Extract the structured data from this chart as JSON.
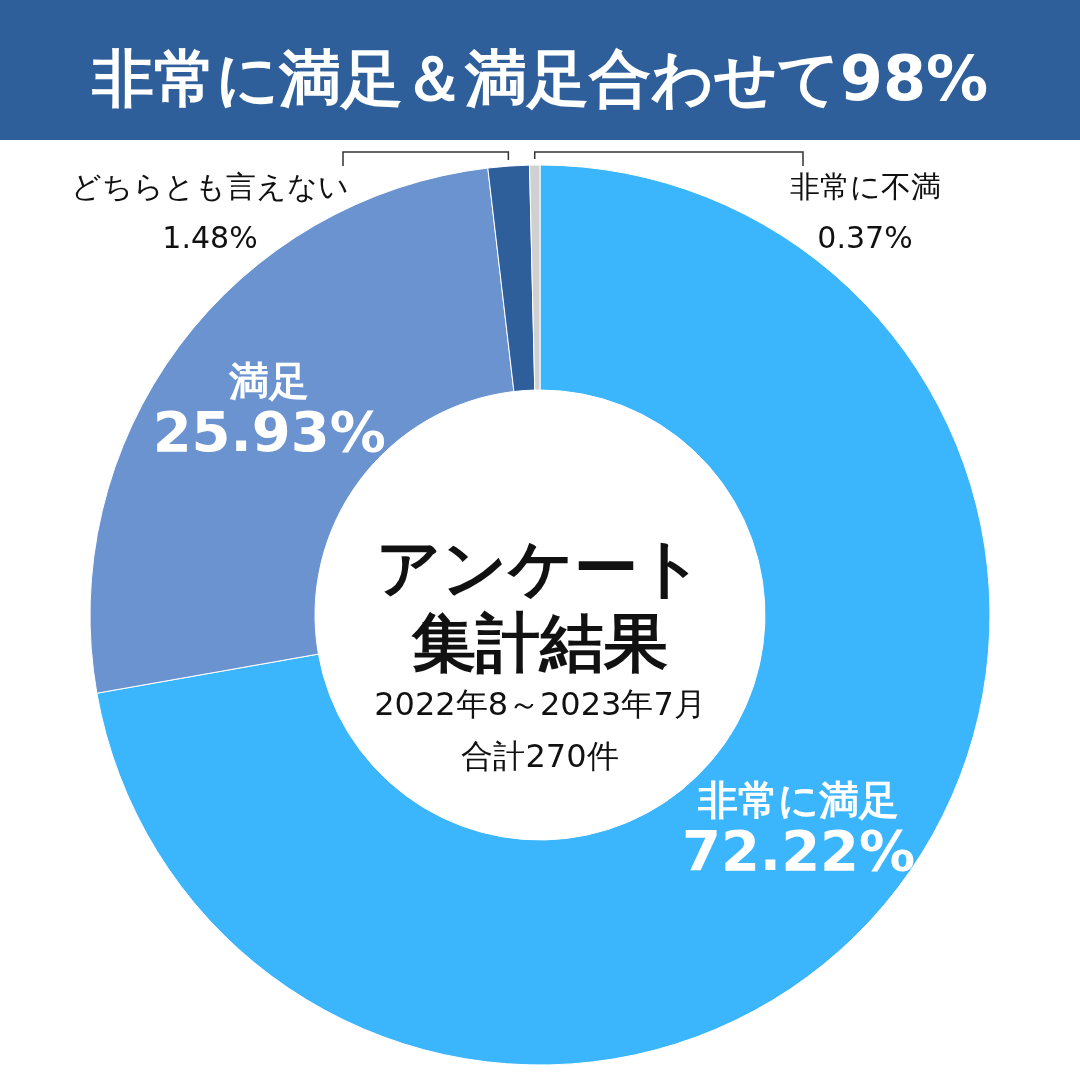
{
  "chart_data": {
    "type": "donut",
    "title": "非常に満足＆満足合わせて98%",
    "subtitle": "アンケート集計結果",
    "annotations": [
      "2022年8～2023年7月",
      "合計270件"
    ],
    "categories": [
      "非常に満足",
      "満足",
      "どちらとも言えない",
      "非常に不満"
    ],
    "values": [
      72.22,
      25.93,
      1.48,
      0.37
    ],
    "value_labels": [
      "72.22%",
      "25.93%",
      "1.48%",
      "0.37%"
    ],
    "colors": [
      "#3bb5fc",
      "#6b93d0",
      "#2e5f9a",
      "#d0d0d0"
    ]
  }
}
